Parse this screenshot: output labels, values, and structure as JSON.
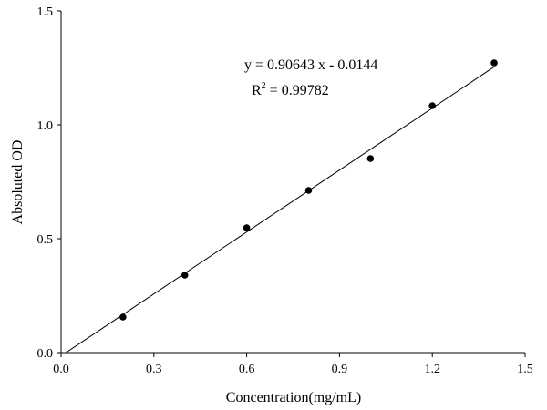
{
  "chart_data": {
    "type": "scatter",
    "x_label": "Concentration(mg/mL)",
    "y_label": "Absoluted OD",
    "x": [
      0.2,
      0.4,
      0.6,
      0.8,
      1.0,
      1.2,
      1.4
    ],
    "values": [
      0.156,
      0.34,
      0.548,
      0.712,
      0.852,
      1.084,
      1.272
    ],
    "color": "#000000",
    "fit": {
      "slope": 0.90643,
      "intercept": -0.0144
    },
    "equation": "y = 0.90643 x - 0.0144",
    "r2_symbol": "R",
    "r2_power": "2",
    "r2_value": " = 0.99782",
    "xlim": [
      0,
      1.5
    ],
    "xticks": [
      {
        "value": 0,
        "label": "0.0"
      },
      {
        "value": 0.3,
        "label": "0.3"
      },
      {
        "value": 0.6,
        "label": "0.6"
      },
      {
        "value": 0.9,
        "label": "0.9"
      },
      {
        "value": 1.2,
        "label": "1.2"
      },
      {
        "value": 1.5,
        "label": "1.5"
      }
    ],
    "ylim": [
      0,
      1.5
    ],
    "yticks": [
      {
        "value": 0,
        "label": "0.0"
      },
      {
        "value": 0.5,
        "label": "0.5"
      },
      {
        "value": 1.0,
        "label": "1.0"
      },
      {
        "value": 1.5,
        "label": "1.5"
      }
    ]
  }
}
